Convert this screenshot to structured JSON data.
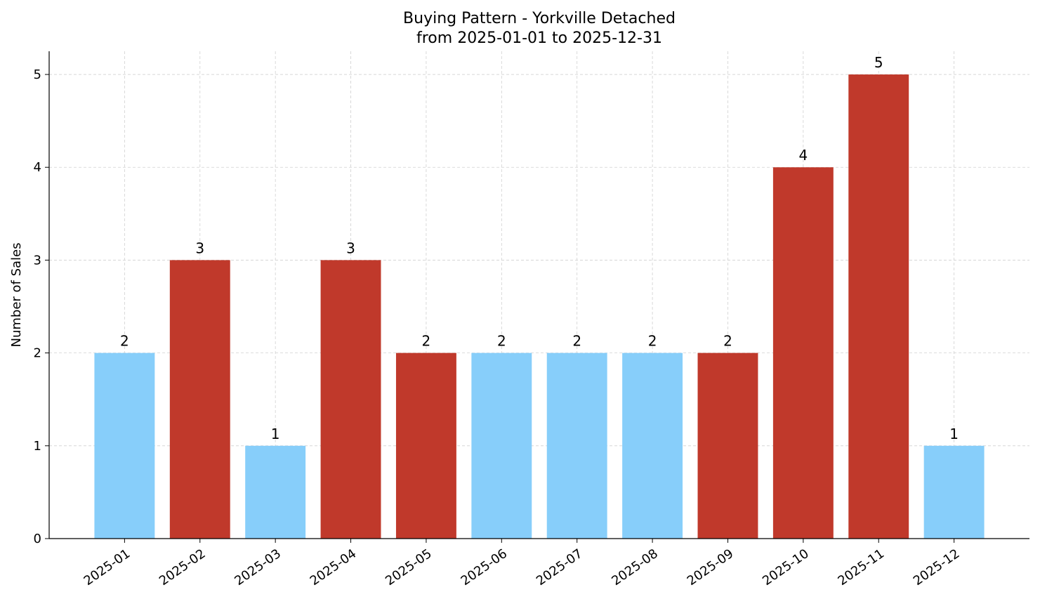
{
  "chart_data": {
    "type": "bar",
    "title": "Buying Pattern - Yorkville Detached",
    "subtitle": "from 2025-01-01 to 2025-12-31",
    "xlabel": "",
    "ylabel": "Number of Sales",
    "categories": [
      "2025-01",
      "2025-02",
      "2025-03",
      "2025-04",
      "2025-05",
      "2025-06",
      "2025-07",
      "2025-08",
      "2025-09",
      "2025-10",
      "2025-11",
      "2025-12"
    ],
    "values": [
      2,
      3,
      1,
      3,
      2,
      2,
      2,
      2,
      2,
      4,
      5,
      1
    ],
    "bar_colors": [
      "#87CEFA",
      "#C0392B",
      "#87CEFA",
      "#C0392B",
      "#C0392B",
      "#87CEFA",
      "#87CEFA",
      "#87CEFA",
      "#C0392B",
      "#C0392B",
      "#C0392B",
      "#87CEFA"
    ],
    "yticks": [
      0,
      1,
      2,
      3,
      4,
      5
    ],
    "ylim": [
      0,
      5.25
    ],
    "grid": true,
    "data_labels": true
  }
}
